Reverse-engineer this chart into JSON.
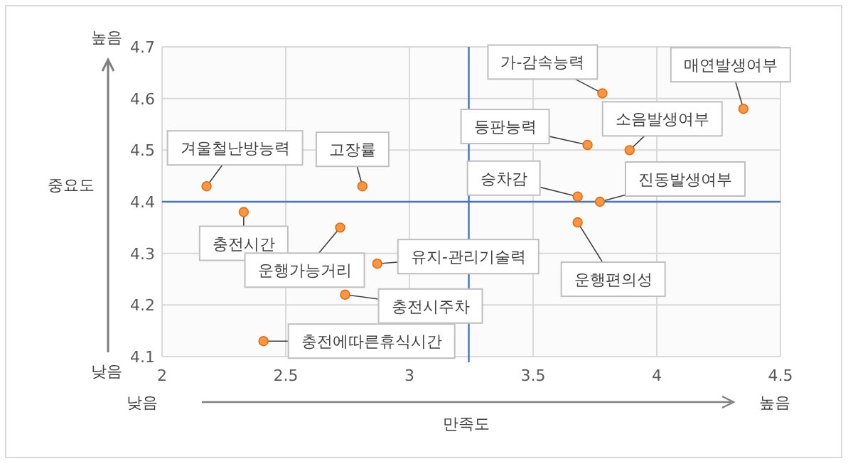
{
  "chart_data": {
    "type": "scatter",
    "xlabel": "만족도",
    "ylabel": "중요도",
    "x": [
      2.18,
      2.81,
      2.33,
      2.72,
      2.87,
      2.74,
      2.41,
      3.78,
      4.35,
      3.72,
      3.89,
      3.68,
      3.77,
      3.68
    ],
    "series": [
      {
        "color": "#f79646",
        "values": [
          4.43,
          4.43,
          4.38,
          4.35,
          4.28,
          4.22,
          4.13,
          4.61,
          4.58,
          4.51,
          4.5,
          4.41,
          4.4,
          4.36
        ]
      }
    ],
    "xlim": [
      2,
      4.5
    ],
    "xticks": [
      2,
      2.5,
      3,
      3.5,
      4,
      4.5
    ],
    "ylim": [
      4.1,
      4.7
    ],
    "yticks": [
      4.1,
      4.2,
      4.3,
      4.4,
      4.5,
      4.6,
      4.7
    ],
    "grid": true,
    "marker": "circle",
    "ref_lines": [
      {
        "axis": "x",
        "value": 3.24,
        "color": "#4472c4"
      },
      {
        "axis": "y",
        "value": 4.4,
        "color": "#4472c4"
      }
    ],
    "annotations": [
      {
        "text": "겨울철난방능력",
        "x": 2.18,
        "y": 4.43
      },
      {
        "text": "고장률",
        "x": 2.81,
        "y": 4.43
      },
      {
        "text": "충전시간",
        "x": 2.33,
        "y": 4.38
      },
      {
        "text": "운행가능거리",
        "x": 2.72,
        "y": 4.35
      },
      {
        "text": "유지-관리기술력",
        "x": 2.87,
        "y": 4.28
      },
      {
        "text": "충전시주차",
        "x": 2.74,
        "y": 4.22
      },
      {
        "text": "충전에따른휴식시간",
        "x": 2.41,
        "y": 4.13
      },
      {
        "text": "가-감속능력",
        "x": 3.78,
        "y": 4.61
      },
      {
        "text": "매연발생여부",
        "x": 4.35,
        "y": 4.58
      },
      {
        "text": "등판능력",
        "x": 3.72,
        "y": 4.51
      },
      {
        "text": "소음발생여부",
        "x": 3.89,
        "y": 4.5
      },
      {
        "text": "승차감",
        "x": 3.68,
        "y": 4.41
      },
      {
        "text": "진동발생여부",
        "x": 3.77,
        "y": 4.4
      },
      {
        "text": "운행편의성",
        "x": 3.68,
        "y": 4.36
      },
      "높음",
      "낮음",
      "낮음",
      "높음"
    ]
  }
}
